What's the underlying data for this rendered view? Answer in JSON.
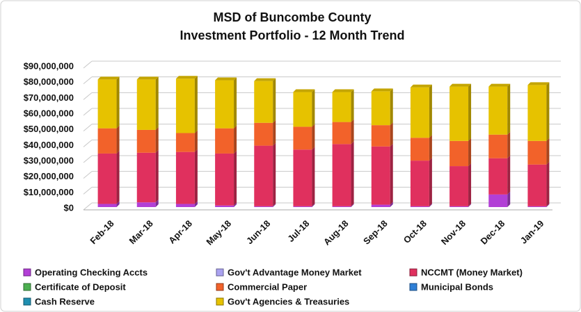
{
  "chart_data": {
    "type": "stacked_bar",
    "title": "MSD of Buncombe County",
    "subtitle": "Investment Portfolio - 12 Month Trend",
    "categories": [
      "Feb-18",
      "Mar-18",
      "Apr-18",
      "May-18",
      "Jun-18",
      "Jul-18",
      "Aug-18",
      "Sep-18",
      "Oct-18",
      "Nov-18",
      "Dec-18",
      "Jan-19"
    ],
    "series": [
      {
        "name": "Operating Checking Accts",
        "color": "#b23fd6",
        "values": [
          2000000,
          3000000,
          2000000,
          1000000,
          500000,
          500000,
          500000,
          1500000,
          500000,
          500000,
          8000000,
          500000
        ]
      },
      {
        "name": "Gov't Advantage Money Market",
        "color": "#aaa2f0",
        "values": [
          0,
          0,
          0,
          0,
          0,
          0,
          0,
          0,
          0,
          0,
          0,
          0
        ]
      },
      {
        "name": "NCCMT (Money Market)",
        "color": "#e0305e",
        "values": [
          32000000,
          31500000,
          33000000,
          33000000,
          38500000,
          36000000,
          39500000,
          37000000,
          29000000,
          25500000,
          23000000,
          26500000
        ]
      },
      {
        "name": "Certificate of Deposit",
        "color": "#4caf50",
        "values": [
          0,
          0,
          0,
          0,
          0,
          0,
          0,
          0,
          0,
          0,
          0,
          0
        ]
      },
      {
        "name": "Commercial Paper",
        "color": "#f2622a",
        "values": [
          16000000,
          14500000,
          12000000,
          16000000,
          14500000,
          14500000,
          14000000,
          13500000,
          14500000,
          16000000,
          15000000,
          15000000
        ]
      },
      {
        "name": "Municipal Bonds",
        "color": "#2f7fd6",
        "values": [
          0,
          0,
          0,
          0,
          0,
          0,
          0,
          0,
          0,
          0,
          0,
          0
        ]
      },
      {
        "name": "Cash  Reserve",
        "color": "#1f8fb0",
        "values": [
          0,
          0,
          0,
          0,
          0,
          0,
          0,
          0,
          0,
          0,
          0,
          0
        ]
      },
      {
        "name": "Gov't Agencies & Treasuries",
        "color": "#e6c200",
        "values": [
          31000000,
          32000000,
          34500000,
          30500000,
          26500000,
          22000000,
          19000000,
          21500000,
          32000000,
          34500000,
          30500000,
          35500000
        ]
      }
    ],
    "ylim": [
      0,
      90000000
    ],
    "yticks": [
      {
        "value": 0,
        "label": "$0"
      },
      {
        "value": 10000000,
        "label": "$10,000,000"
      },
      {
        "value": 20000000,
        "label": "$20,000,000"
      },
      {
        "value": 30000000,
        "label": "$30,000,000"
      },
      {
        "value": 40000000,
        "label": "$40,000,000"
      },
      {
        "value": 50000000,
        "label": "$50,000,000"
      },
      {
        "value": 60000000,
        "label": "$60,000,000"
      },
      {
        "value": 70000000,
        "label": "$70,000,000"
      },
      {
        "value": 80000000,
        "label": "$80,000,000"
      },
      {
        "value": 90000000,
        "label": "$90,000,000"
      }
    ],
    "grid": true,
    "legend": "bottom"
  }
}
